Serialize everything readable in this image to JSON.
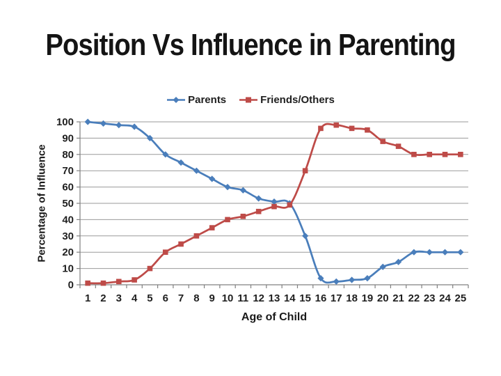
{
  "page": {
    "title": "Position Vs Influence in Parenting"
  },
  "chart_data": {
    "type": "line",
    "title": "Position Vs Influence in Parenting",
    "xlabel": "Age of Child",
    "ylabel": "Percentage of Influence",
    "x": [
      1,
      2,
      3,
      4,
      5,
      6,
      7,
      8,
      9,
      10,
      11,
      12,
      13,
      14,
      15,
      16,
      17,
      18,
      19,
      20,
      21,
      22,
      23,
      24,
      25
    ],
    "series": [
      {
        "name": "Parents",
        "color": "#4a7ebb",
        "marker": "diamond",
        "smooth": true,
        "values": [
          100,
          99,
          98,
          97,
          90,
          80,
          75,
          70,
          65,
          60,
          58,
          53,
          51,
          50,
          30,
          4,
          2,
          3,
          4,
          11,
          14,
          20,
          20,
          20,
          20
        ]
      },
      {
        "name": "Friends/Others",
        "color": "#be4b48",
        "marker": "square",
        "smooth": true,
        "values": [
          1,
          1,
          2,
          3,
          10,
          20,
          25,
          30,
          35,
          40,
          42,
          45,
          48,
          49,
          70,
          96,
          98,
          96,
          95,
          88,
          85,
          80,
          80,
          80,
          80
        ]
      }
    ],
    "ylim": [
      0,
      100
    ],
    "yticks": [
      0,
      10,
      20,
      30,
      40,
      50,
      60,
      70,
      80,
      90,
      100
    ],
    "grid": true,
    "gridline_color": "#9a9a9a",
    "axis_color": "#808080",
    "tick_label_color": "#1f1f1f",
    "legend_position": "top"
  }
}
